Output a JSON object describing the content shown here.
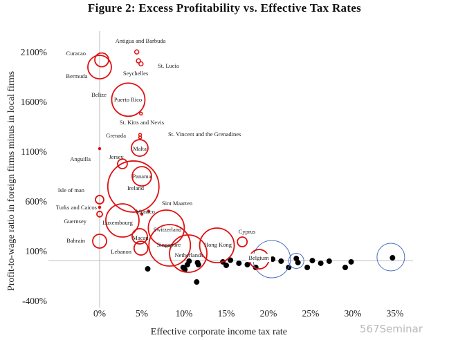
{
  "title": "Figure 2: Excess Profitability vs. Effective Tax Rates",
  "watermark": "567Seminar",
  "chart_data": {
    "type": "scatter",
    "title": "Figure 2: Excess Profitability vs. Effective Tax Rates",
    "xlabel": "Effective corporate income tax rate",
    "ylabel": "Profit-to-wage ratio in foreign firms minus in local firms",
    "xlim": [
      -8,
      40
    ],
    "ylim": [
      -550,
      2200
    ],
    "x_ticks": [
      0,
      5,
      10,
      15,
      20,
      25,
      30,
      35
    ],
    "x_tick_labels": [
      "0%",
      "5%",
      "10%",
      "15%",
      "20%",
      "25%",
      "30%",
      "35%"
    ],
    "y_ticks": [
      2100,
      1600,
      1100,
      600,
      100,
      -400
    ],
    "y_tick_labels": [
      "2100%",
      "1600%",
      "1100%",
      "600%",
      "100%",
      "-400%"
    ],
    "grid": false,
    "reference_lines": {
      "x": 0,
      "y": 0
    },
    "colors": {
      "tax_haven": "#e01010",
      "large_economy": "#4a6fc0",
      "other": "#000000",
      "reference": "#bbbbbb"
    },
    "tax_havens": [
      {
        "name": "Curacao",
        "x": 0.25,
        "y": 2020,
        "size": 10
      },
      {
        "name": "Bermuda",
        "x": 0,
        "y": 1947,
        "size": 17
      },
      {
        "name": "Antigua and Barbuda",
        "x": 4.4,
        "y": 2100,
        "size": 3
      },
      {
        "name": "Seychelles",
        "x": 4.6,
        "y": 2010,
        "size": 3
      },
      {
        "name": "St. Lucia",
        "x": 4.9,
        "y": 1980,
        "size": 3
      },
      {
        "name": "Belize",
        "x": 0,
        "y": 1620,
        "size": 0
      },
      {
        "name": "Puerto Rico",
        "x": 3.4,
        "y": 1620,
        "size": 24
      },
      {
        "name": "St. Kitts and Nevis",
        "x": 4.9,
        "y": 1480,
        "size": 2
      },
      {
        "name": "Grenada",
        "x": 4.8,
        "y": 1240,
        "size": 2
      },
      {
        "name": "St. Vincent and the Grenadines",
        "x": 4.8,
        "y": 1267,
        "size": 2
      },
      {
        "name": "Anguilla",
        "x": 0,
        "y": 1128,
        "size": 1.5
      },
      {
        "name": "Malta",
        "x": 4.75,
        "y": 1135,
        "size": 12
      },
      {
        "name": "Jersey",
        "x": 2.7,
        "y": 975,
        "size": 7
      },
      {
        "name": "Panama",
        "x": 5.0,
        "y": 850,
        "size": 14
      },
      {
        "name": "Ireland",
        "x": 4.0,
        "y": 747,
        "size": 37
      },
      {
        "name": "Isle of man",
        "x": 0,
        "y": 615,
        "size": 6
      },
      {
        "name": "Turks and Caicos",
        "x": 0,
        "y": 538,
        "size": 1.5
      },
      {
        "name": "Sint Maarten",
        "x": 5.8,
        "y": 500,
        "size": 1.5
      },
      {
        "name": "Monaco",
        "x": 5.0,
        "y": 470,
        "size": 1.5
      },
      {
        "name": "Guernsey",
        "x": 0,
        "y": 470,
        "size": 4
      },
      {
        "name": "Luxembourg",
        "x": 2.7,
        "y": 406,
        "size": 24
      },
      {
        "name": "Switzerland",
        "x": 7.9,
        "y": 330,
        "size": 26
      },
      {
        "name": "Macau",
        "x": 4.75,
        "y": 247,
        "size": 11
      },
      {
        "name": "Bahrain",
        "x": 0,
        "y": 198,
        "size": 10
      },
      {
        "name": "Singapore",
        "x": 8.3,
        "y": 156,
        "size": 30
      },
      {
        "name": "Cyprus",
        "x": 16.9,
        "y": 191,
        "size": 7
      },
      {
        "name": "Hong Kong",
        "x": 13.9,
        "y": 156,
        "size": 25
      },
      {
        "name": "Lebanon",
        "x": 4.9,
        "y": 128,
        "size": 10
      },
      {
        "name": "Netherlands",
        "x": 10.5,
        "y": 73,
        "size": 27
      },
      {
        "name": "Belgium",
        "x": 18.9,
        "y": 17,
        "size": 14
      }
    ],
    "large_economies": [
      {
        "x": 20.4,
        "y": 17,
        "size": 27
      },
      {
        "x": 23.3,
        "y": 0,
        "size": 11
      },
      {
        "x": 34.5,
        "y": 38,
        "size": 20
      }
    ],
    "other_countries": [
      {
        "x": 5.7,
        "y": -80
      },
      {
        "x": 9.9,
        "y": -66
      },
      {
        "x": 10.1,
        "y": -87
      },
      {
        "x": 10.4,
        "y": -38
      },
      {
        "x": 10.6,
        "y": -3
      },
      {
        "x": 11.5,
        "y": -212
      },
      {
        "x": 11.6,
        "y": -17
      },
      {
        "x": 11.7,
        "y": -38
      },
      {
        "x": 14.6,
        "y": -10
      },
      {
        "x": 15.0,
        "y": -45
      },
      {
        "x": 15.5,
        "y": 7
      },
      {
        "x": 16.5,
        "y": -24
      },
      {
        "x": 17.5,
        "y": -38
      },
      {
        "x": 18.5,
        "y": -66
      },
      {
        "x": 20.5,
        "y": 17
      },
      {
        "x": 21.5,
        "y": -3
      },
      {
        "x": 22.4,
        "y": -66
      },
      {
        "x": 23.3,
        "y": 24
      },
      {
        "x": 23.5,
        "y": -17
      },
      {
        "x": 24.6,
        "y": -66
      },
      {
        "x": 25.2,
        "y": 3
      },
      {
        "x": 26.2,
        "y": -24
      },
      {
        "x": 27.2,
        "y": -3
      },
      {
        "x": 29.1,
        "y": -66
      },
      {
        "x": 29.8,
        "y": -10
      },
      {
        "x": 34.7,
        "y": 31
      }
    ]
  }
}
